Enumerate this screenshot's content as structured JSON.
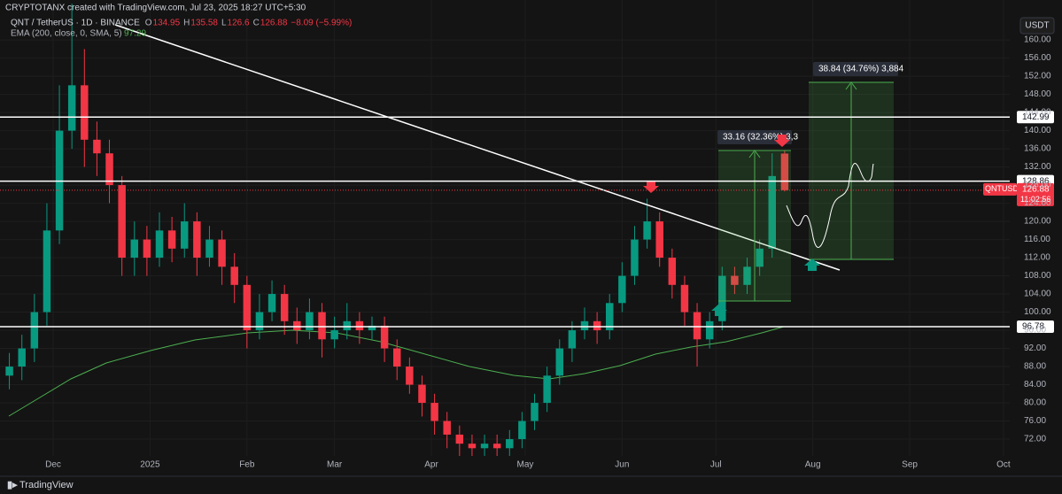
{
  "header": {
    "watermark": "CRYPTOTANX created with TradingView.com, Jul 23, 2025 18:27 UTC+5:30",
    "currency_button": "USDT",
    "brand": "TradingView"
  },
  "chart_data": {
    "type": "candlestick",
    "legend": {
      "symbol": "QNT / TetherUS · 1D · BINANCE",
      "open_label": "O",
      "high_label": "H",
      "low_label": "L",
      "close_label": "C",
      "change": "−8.09 (−5.99%)",
      "indicator": "EMA (200, close, 0, SMA, 5)",
      "indicator_value": 97.29
    },
    "up_color": "#089981",
    "down_color": "#f23645",
    "x": [
      -14,
      -10,
      -6,
      -2,
      2,
      6,
      10,
      14,
      18,
      22,
      26,
      30,
      34,
      38,
      42,
      46,
      50,
      54,
      58,
      62,
      66,
      70,
      74,
      78,
      82,
      86,
      90,
      94,
      98,
      102,
      106,
      110,
      114,
      118,
      122,
      126,
      130,
      134,
      138,
      142,
      146,
      150,
      154,
      158,
      162,
      166,
      170,
      174,
      178,
      182,
      186,
      190,
      194,
      198,
      202,
      206,
      210,
      214,
      218,
      222,
      226,
      230,
      234
    ],
    "open": [
      86,
      88,
      92,
      100,
      118,
      140,
      150,
      138,
      135,
      128,
      112,
      116,
      112,
      118,
      114,
      120,
      112,
      116,
      110,
      106,
      96,
      100,
      104,
      98,
      96,
      100,
      94,
      96,
      98,
      96,
      97,
      92,
      88,
      84,
      80,
      76,
      73,
      71,
      70,
      71,
      70,
      72,
      76,
      80,
      86,
      92,
      96,
      98,
      96,
      102,
      108,
      116,
      120,
      112,
      106,
      100,
      94,
      98,
      108,
      106,
      110,
      114,
      134.95
    ],
    "high": [
      91,
      95,
      104,
      124,
      150,
      168,
      158,
      142,
      138,
      130,
      120,
      119,
      122,
      121,
      124,
      122,
      119,
      118,
      113,
      108,
      104,
      107,
      106,
      101,
      103,
      102,
      99,
      102,
      100,
      99,
      99,
      94,
      90,
      86,
      82,
      78,
      75,
      73,
      73,
      73,
      74,
      78,
      82,
      88,
      94,
      98,
      101,
      100,
      104,
      111,
      119,
      125,
      122,
      114,
      108,
      102,
      100,
      110,
      110,
      112,
      116,
      135,
      135.58
    ],
    "low": [
      83,
      85,
      89,
      97,
      115,
      136,
      132,
      130,
      124,
      108,
      108,
      108,
      110,
      111,
      112,
      108,
      110,
      106,
      102,
      92,
      94,
      98,
      95,
      93,
      94,
      90,
      92,
      94,
      93,
      94,
      89,
      85,
      82,
      77,
      73,
      70,
      68,
      68,
      68,
      68,
      68,
      70,
      74,
      78,
      84,
      89,
      94,
      93,
      94,
      100,
      106,
      114,
      110,
      103,
      97,
      88,
      92,
      96,
      104,
      104,
      108,
      112,
      126.6
    ],
    "close": [
      88,
      92,
      100,
      118,
      140,
      150,
      138,
      135,
      128,
      112,
      116,
      112,
      118,
      114,
      120,
      112,
      116,
      110,
      106,
      96,
      100,
      104,
      98,
      96,
      100,
      94,
      96,
      98,
      96,
      97,
      92,
      88,
      84,
      80,
      76,
      73,
      71,
      70,
      71,
      70,
      72,
      76,
      80,
      86,
      92,
      96,
      98,
      96,
      102,
      108,
      116,
      120,
      112,
      106,
      100,
      94,
      98,
      108,
      106,
      110,
      114,
      130,
      126.88
    ],
    "xlim": [
      -17,
      306
    ],
    "xticks": [
      {
        "value": 0,
        "label": "Dec"
      },
      {
        "value": 31,
        "label": "2025"
      },
      {
        "value": 62,
        "label": "Feb"
      },
      {
        "value": 90,
        "label": "Mar"
      },
      {
        "value": 121,
        "label": "Apr"
      },
      {
        "value": 151,
        "label": "May"
      },
      {
        "value": 182,
        "label": "Jun"
      },
      {
        "value": 212,
        "label": "Jul"
      },
      {
        "value": 243,
        "label": "Aug"
      },
      {
        "value": 274,
        "label": "Sep"
      },
      {
        "value": 304,
        "label": "Oct"
      }
    ],
    "ylim": [
      68.3,
      168.8
    ],
    "yticks": [
      {
        "value": 72,
        "label": "72.00"
      },
      {
        "value": 76,
        "label": "76.00"
      },
      {
        "value": 80,
        "label": "80.00"
      },
      {
        "value": 84,
        "label": "84.00"
      },
      {
        "value": 88,
        "label": "88.00"
      },
      {
        "value": 92,
        "label": "92.00"
      },
      {
        "value": 96,
        "label": "96.00"
      },
      {
        "value": 100,
        "label": "100.00"
      },
      {
        "value": 104,
        "label": "104.00"
      },
      {
        "value": 108,
        "label": "108.00"
      },
      {
        "value": 112,
        "label": "112.00"
      },
      {
        "value": 116,
        "label": "116.00"
      },
      {
        "value": 120,
        "label": "120.00"
      },
      {
        "value": 124,
        "label": "124.00"
      },
      {
        "value": 128,
        "label": "128.00"
      },
      {
        "value": 132,
        "label": "132.00"
      },
      {
        "value": 136,
        "label": "136.00"
      },
      {
        "value": 140,
        "label": "140.00"
      },
      {
        "value": 144,
        "label": "144.00"
      },
      {
        "value": 148,
        "label": "148.00"
      },
      {
        "value": 152,
        "label": "152.00"
      },
      {
        "value": 156,
        "label": "156.00"
      },
      {
        "value": 160,
        "label": "160.00"
      }
    ],
    "levels": [
      142.99,
      128.86,
      96.78
    ],
    "price_tag": {
      "symbol": "QNTUSDT",
      "countdown": "11:02:56"
    },
    "positions": [
      "33.16 (32.36%) 3,3",
      "38.84 (34.76%) 3,884"
    ],
    "grid": true
  }
}
